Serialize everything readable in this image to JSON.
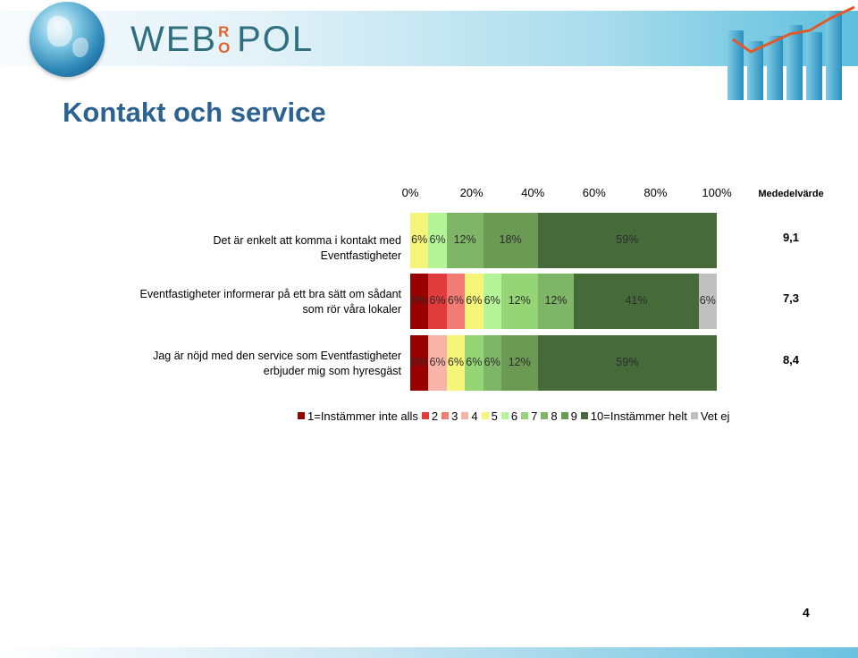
{
  "header": {
    "logo_main": "WEB",
    "logo_ro_top": "R",
    "logo_ro_bottom": "O",
    "logo_end": "POL"
  },
  "page_title": "Kontakt och service",
  "mean_header": "Mededelvärde",
  "page_number": "4",
  "colors": {
    "1": "#990000",
    "2": "#e23b3b",
    "3": "#f27b73",
    "4": "#f8b4a8",
    "5": "#f5f57a",
    "6": "#b5f59a",
    "7": "#95d576",
    "8": "#7fb566",
    "9": "#6a9a53",
    "10": "#466a3a",
    "vet_ej": "#c0c0c0"
  },
  "chart_data": {
    "type": "bar",
    "orientation": "horizontal",
    "stacked": true,
    "xlim": [
      0,
      100
    ],
    "x_ticks": [
      "0%",
      "20%",
      "40%",
      "60%",
      "80%",
      "100%"
    ],
    "legend_position": "bottom",
    "grid": false,
    "legend": [
      "1=Instämmer inte alls",
      "2",
      "3",
      "4",
      "5",
      "6",
      "7",
      "8",
      "9",
      "10=Instämmer helt",
      "Vet ej"
    ],
    "legend_keys": [
      "1",
      "2",
      "3",
      "4",
      "5",
      "6",
      "7",
      "8",
      "9",
      "10",
      "vet_ej"
    ],
    "categories": [
      "Det är enkelt att komma i kontakt med Eventfastigheter",
      "Eventfastigheter informerar på ett bra sätt om sådant som rör våra lokaler",
      "Jag är nöjd med den service som Eventfastigheter erbjuder mig som hyresgäst"
    ],
    "rows": [
      {
        "label_lines": [
          "Det är enkelt att komma i kontakt med Eventfastigheter"
        ],
        "mean": "9,1",
        "segments": [
          {
            "key": "5",
            "value": 6,
            "label": "6%"
          },
          {
            "key": "6",
            "value": 6,
            "label": "6%"
          },
          {
            "key": "8",
            "value": 12,
            "label": "12%"
          },
          {
            "key": "9",
            "value": 18,
            "label": "18%"
          },
          {
            "key": "10",
            "value": 59,
            "label": "59%"
          }
        ]
      },
      {
        "label_lines": [
          "Eventfastigheter informerar på ett bra sätt om sådant",
          "som rör våra lokaler"
        ],
        "mean": "7,3",
        "segments": [
          {
            "key": "1",
            "value": 6,
            "label": "6%"
          },
          {
            "key": "2",
            "value": 6,
            "label": "6%"
          },
          {
            "key": "3",
            "value": 6,
            "label": "6%"
          },
          {
            "key": "5",
            "value": 6,
            "label": "6%"
          },
          {
            "key": "6",
            "value": 6,
            "label": "6%"
          },
          {
            "key": "7",
            "value": 12,
            "label": "12%"
          },
          {
            "key": "8",
            "value": 12,
            "label": "12%"
          },
          {
            "key": "10",
            "value": 41,
            "label": "41%"
          },
          {
            "key": "vet_ej",
            "value": 6,
            "label": "6%"
          }
        ]
      },
      {
        "label_lines": [
          "Jag är nöjd med den service som Eventfastigheter",
          "erbjuder mig som hyresgäst"
        ],
        "mean": "8,4",
        "segments": [
          {
            "key": "1",
            "value": 6,
            "label": "6%"
          },
          {
            "key": "4",
            "value": 6,
            "label": "6%"
          },
          {
            "key": "5",
            "value": 6,
            "label": "6%"
          },
          {
            "key": "7",
            "value": 6,
            "label": "6%"
          },
          {
            "key": "8",
            "value": 6,
            "label": "6%"
          },
          {
            "key": "9",
            "value": 12,
            "label": "12%"
          },
          {
            "key": "10",
            "value": 59,
            "label": "59%"
          }
        ]
      }
    ]
  }
}
